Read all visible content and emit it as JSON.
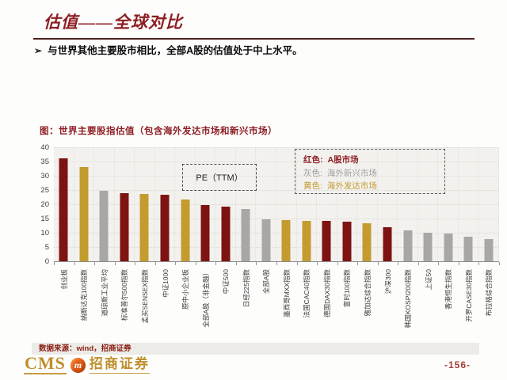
{
  "header": {
    "title": "估值——全球对比",
    "bullet_marker": "➢",
    "bullet": "与世界其他主要股市相比，全部A股的估值处于中上水平。"
  },
  "chart": {
    "title": "图：世界主要股指估值（包含海外发达市场和新兴市场）",
    "pe_label": "PE（TTM）",
    "legend": [
      {
        "prefix": "红色:",
        "label": "A股市场",
        "color": "#8e1f24"
      },
      {
        "prefix": "灰色:",
        "label": "海外新兴市场",
        "color": "#9e9e9c"
      },
      {
        "prefix": "黄色:",
        "label": "海外发达市场",
        "color": "#c49b2f"
      }
    ],
    "source": "数据来源：wind，招商证券"
  },
  "chart_data": {
    "type": "bar",
    "title": "图：世界主要股指估值（包含海外发达市场和新兴市场）",
    "value_label": "PE（TTM）",
    "ylim": [
      0,
      40
    ],
    "y_ticks": [
      40,
      35,
      30,
      25,
      20,
      15,
      10,
      5,
      0
    ],
    "grid": true,
    "legend_position": "top-right",
    "categories": [
      "创业板",
      "纳斯达克100指数",
      "道琼斯工业平均",
      "标准普尔500指数",
      "孟买SENSEX指数",
      "中证1000",
      "原中小企业板",
      "全部A股（非金融）",
      "中证500",
      "日经225指数",
      "全部A股",
      "墨西哥MXX指数",
      "法国CAC40指数",
      "德国DAX30指数",
      "富时100指数",
      "雅加达综合指数",
      "沪深300",
      "韩国KOSPI200指数",
      "上证50",
      "香港恒生指数",
      "开罗CASE30指数",
      "布拉格综合指数"
    ],
    "values": [
      36.0,
      33.0,
      24.8,
      24.0,
      23.6,
      23.3,
      21.7,
      19.7,
      19.1,
      18.3,
      14.8,
      14.5,
      14.3,
      14.1,
      13.9,
      13.2,
      11.9,
      10.7,
      10.0,
      9.8,
      8.7,
      7.9
    ],
    "bar_color_keys": [
      "red",
      "gold",
      "gray",
      "red",
      "gold",
      "red",
      "gold",
      "red",
      "red",
      "gray",
      "gray",
      "gold",
      "gold",
      "red",
      "red",
      "gold",
      "red",
      "gray",
      "gray",
      "gray",
      "gray",
      "gray"
    ],
    "colors": {
      "red": "#7d1412",
      "gold": "#c49b2f",
      "gray": "#a8a7a5"
    }
  },
  "footer": {
    "logo_cms": "CMS",
    "logo_badge": "m",
    "logo_company": "招商证券",
    "page_number": "-156-"
  },
  "theme": {
    "title_red": "#8e1f24",
    "source_red": "#8b2015",
    "logo_gold": "#be8e2c",
    "badge_orange": "#e05a14",
    "page_number_red": "#a33c36"
  }
}
